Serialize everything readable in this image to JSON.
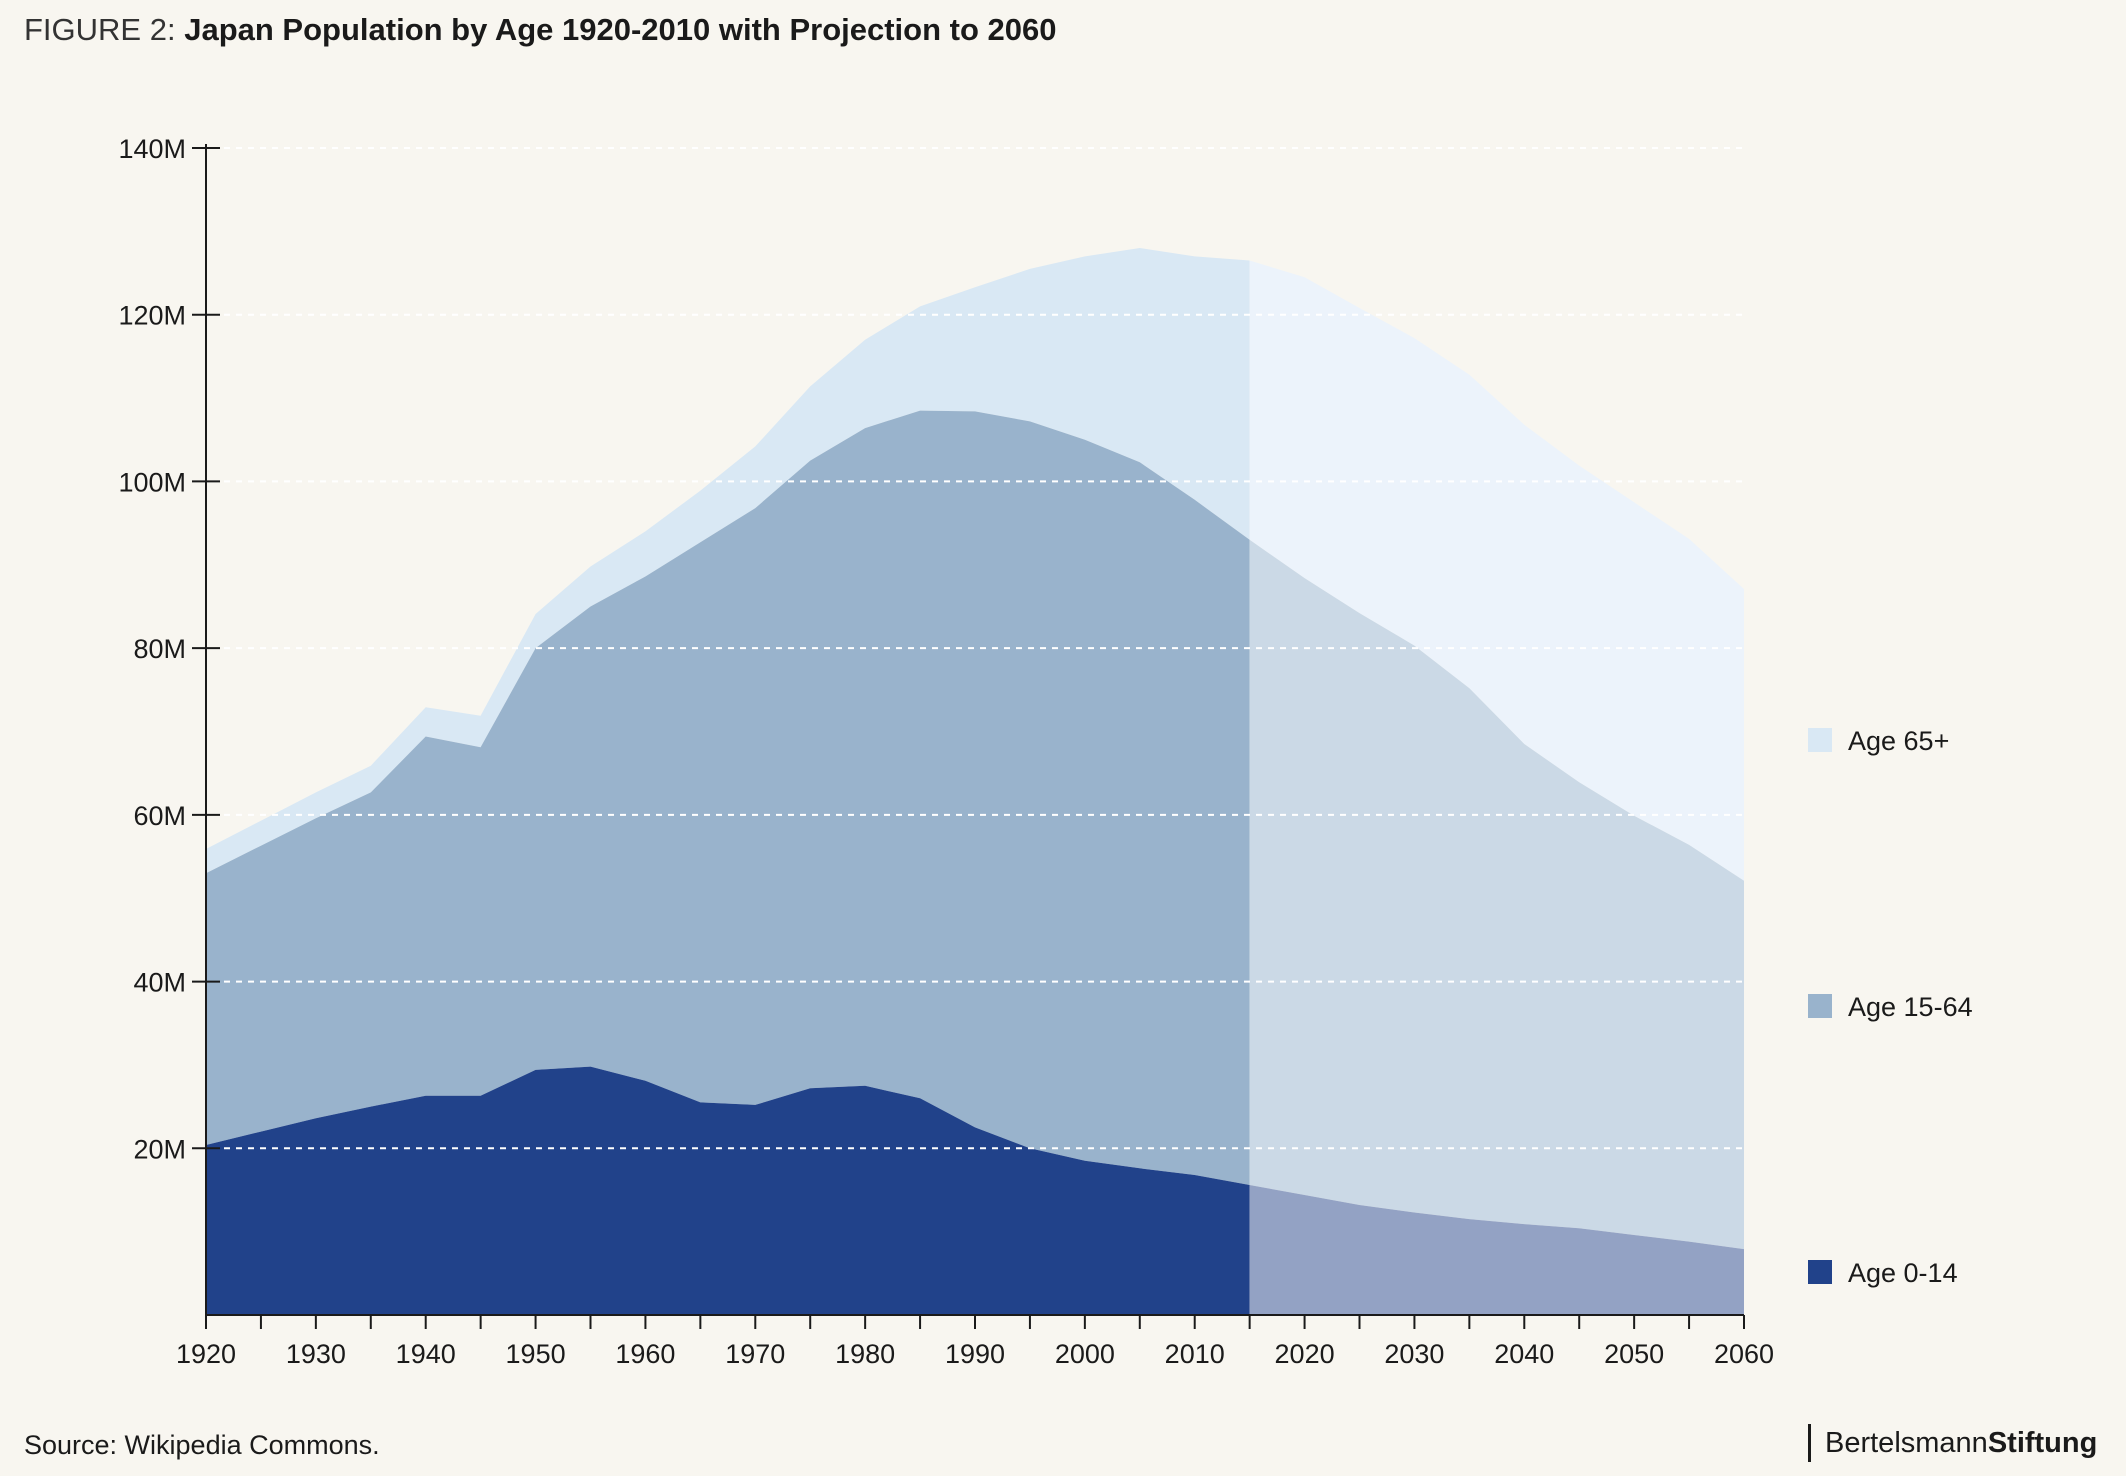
{
  "header": {
    "prefix": "FIGURE 2:",
    "title": "Japan Population by Age 1920-2010 with Projection to 2060"
  },
  "footer": {
    "source": "Source: Wikipedia Commons.",
    "brand_part1": "Bertelsmann",
    "brand_part2": "Stiftung"
  },
  "colors": {
    "age_0_14": "#21428a",
    "age_15_64": "#99b3cc",
    "age_65_plus": "#d9e8f4",
    "age_0_14_projection": "#93a2c4",
    "age_15_64_projection": "#cbd9e6",
    "age_65_plus_projection": "#ecf3fb",
    "background": "#f8f6f0"
  },
  "chart_data": {
    "type": "area",
    "stacked": true,
    "title": "Japan Population by Age 1920-2010 with Projection to 2060",
    "x": [
      1920,
      1925,
      1930,
      1935,
      1940,
      1945,
      1950,
      1955,
      1960,
      1965,
      1970,
      1975,
      1980,
      1985,
      1990,
      1995,
      2000,
      2005,
      2010,
      2015,
      2020,
      2025,
      2030,
      2035,
      2040,
      2045,
      2050,
      2055,
      2060
    ],
    "x_ticks": [
      "1920",
      "1930",
      "1940",
      "1950",
      "1960",
      "1970",
      "1980",
      "1990",
      "2000",
      "2010",
      "2020",
      "2030",
      "2040",
      "2050",
      "2060"
    ],
    "y_ticks": [
      "20M",
      "40M",
      "60M",
      "80M",
      "100M",
      "120M",
      "140M"
    ],
    "ylim": [
      0,
      140
    ],
    "y_unit": "millions",
    "projection_start": 2015,
    "grid": "dashed horizontal",
    "legend_position": "right",
    "series": [
      {
        "name": "Age 0-14",
        "values": [
          20.4,
          22.0,
          23.6,
          25.0,
          26.3,
          26.3,
          29.4,
          29.8,
          28.1,
          25.5,
          25.2,
          27.2,
          27.5,
          26.0,
          22.5,
          20.0,
          18.5,
          17.6,
          16.8,
          15.6,
          14.4,
          13.2,
          12.3,
          11.5,
          10.9,
          10.4,
          9.6,
          8.8,
          7.9
        ]
      },
      {
        "name": "Age 15-64",
        "values": [
          32.6,
          34.3,
          36.0,
          37.7,
          43.1,
          41.8,
          50.6,
          55.2,
          60.5,
          67.2,
          71.6,
          75.3,
          78.9,
          82.5,
          85.9,
          87.2,
          86.5,
          84.7,
          81.0,
          77.4,
          74.0,
          71.0,
          68.0,
          63.7,
          57.6,
          53.5,
          50.3,
          47.6,
          44.2
        ]
      },
      {
        "name": "Age 65+",
        "values": [
          2.9,
          3.0,
          3.1,
          3.2,
          3.5,
          3.8,
          4.1,
          4.8,
          5.4,
          6.2,
          7.4,
          8.9,
          10.6,
          12.5,
          14.9,
          18.3,
          22.0,
          25.7,
          29.2,
          33.5,
          36.1,
          36.6,
          36.9,
          37.6,
          38.3,
          38.0,
          37.6,
          36.7,
          35.0
        ]
      }
    ]
  }
}
